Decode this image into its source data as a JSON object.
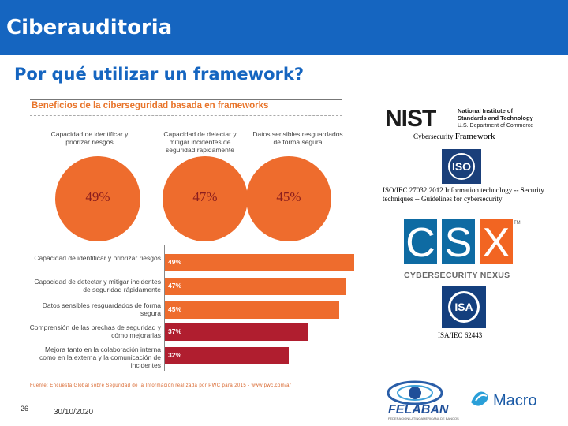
{
  "header": {
    "title": "Ciberauditoria"
  },
  "slide": {
    "subtitle": "Por qué utilizar un framework?",
    "number": "26",
    "date": "30/10/2020"
  },
  "infographic": {
    "title": "Beneficios de la ciberseguridad basada en frameworks",
    "circles": [
      {
        "caption": "Capacidad de identificar y priorizar riesgos",
        "value": "49%"
      },
      {
        "caption": "Capacidad de detectar y mitigar incidentes de seguridad rápidamente",
        "value": "47%"
      },
      {
        "caption": "Datos sensibles resguardados de forma segura",
        "value": "45%"
      }
    ],
    "bars": [
      {
        "label": "Capacidad de identificar y priorizar riesgos",
        "value": "49%",
        "fraction": 0.49,
        "color": "#ee6c2d"
      },
      {
        "label": "Capacidad de detectar y mitigar incidentes de seguridad rápidamente",
        "value": "47%",
        "fraction": 0.47,
        "color": "#ee6c2d"
      },
      {
        "label": "Datos sensibles resguardados de forma segura",
        "value": "45%",
        "fraction": 0.45,
        "color": "#ee6c2d"
      },
      {
        "label": "Comprensión de las brechas de seguridad y cómo mejorarlas",
        "value": "37%",
        "fraction": 0.37,
        "color": "#b01e2f"
      },
      {
        "label": "Mejora tanto en la colaboración interna como en la externa y la comunicación de incidentes",
        "value": "32%",
        "fraction": 0.32,
        "color": "#b01e2f"
      }
    ],
    "source": "Fuente: Encuesta Global sobre Seguridad de la Información realizada por PWC para 2015 - www.pwc.com/ar"
  },
  "logos": {
    "nist": {
      "mark": "NIST",
      "lines": [
        "National Institute of",
        "Standards and Technology",
        "U.S. Department of Commerce"
      ]
    },
    "nist_caption_prefix": "Cybersecurity",
    "nist_caption_main": "Framework",
    "iso": {
      "mark": "ISO"
    },
    "iso_caption": "ISO/IEC 27032:2012 Information technology -- Security techniques -- Guidelines for cybersecurity",
    "csx": {
      "letters": [
        "C",
        "S",
        "X"
      ],
      "tm": "TM",
      "caption": "CYBERSECURITY NEXUS"
    },
    "isa": {
      "mark": "ISA"
    },
    "isa_caption": "ISA/IEC 62443",
    "felaban": {
      "name": "FELABAN",
      "tagline": "FEDERACIÓN LATINOAMERICANA DE BANCOS"
    },
    "macro": {
      "name": "Macro"
    }
  },
  "colors": {
    "header_bg": "#1565c0",
    "orange": "#ee6c2d",
    "crimson": "#b01e2f",
    "iso_blue": "#1a3f7a"
  }
}
